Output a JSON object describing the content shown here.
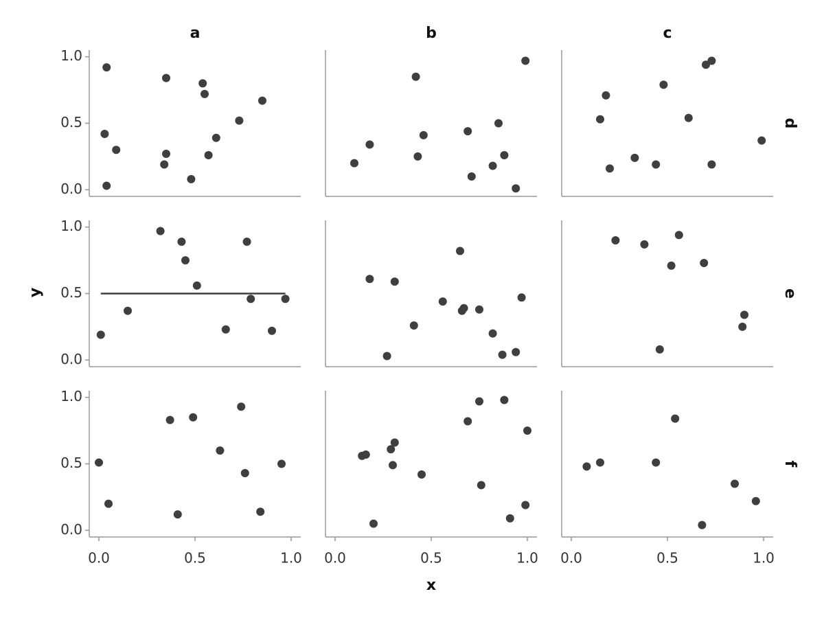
{
  "chart_data": {
    "type": "scatter",
    "x_label": "x",
    "y_label": "y",
    "col_labels": [
      "a",
      "b",
      "c"
    ],
    "row_labels": [
      "d",
      "e",
      "f"
    ],
    "color": "#3f3f3f",
    "xlim": [
      -0.05,
      1.05
    ],
    "ylim": [
      -0.05,
      1.05
    ],
    "xticks": [
      {
        "value": 0,
        "label": "0.0"
      },
      0.5,
      {
        "value": 1,
        "label": "1.0"
      }
    ],
    "yticks": [
      {
        "value": 0,
        "label": "0.0"
      },
      0.5,
      {
        "value": 1,
        "label": "1.0"
      }
    ],
    "panels": [
      [
        {
          "x": [
            0.04,
            0.03,
            0.04,
            0.09,
            0.35,
            0.35,
            0.34,
            0.48,
            0.54,
            0.55,
            0.57,
            0.61,
            0.73,
            0.85
          ],
          "y": [
            0.92,
            0.42,
            0.03,
            0.3,
            0.84,
            0.27,
            0.19,
            0.08,
            0.8,
            0.72,
            0.26,
            0.39,
            0.52,
            0.67
          ]
        },
        {
          "x": [
            0.1,
            0.18,
            0.42,
            0.46,
            0.43,
            0.69,
            0.71,
            0.85,
            0.82,
            0.88,
            0.94,
            0.99
          ],
          "y": [
            0.2,
            0.34,
            0.85,
            0.41,
            0.25,
            0.44,
            0.1,
            0.5,
            0.18,
            0.26,
            0.01,
            0.97
          ]
        },
        {
          "x": [
            0.15,
            0.18,
            0.2,
            0.33,
            0.44,
            0.48,
            0.61,
            0.7,
            0.73,
            0.73,
            0.99
          ],
          "y": [
            0.53,
            0.71,
            0.16,
            0.24,
            0.19,
            0.79,
            0.54,
            0.94,
            0.97,
            0.19,
            0.37
          ]
        }
      ],
      [
        {
          "x": [
            0.01,
            0.15,
            0.32,
            0.43,
            0.45,
            0.51,
            0.66,
            0.77,
            0.79,
            0.9,
            0.97
          ],
          "y": [
            0.19,
            0.37,
            0.97,
            0.89,
            0.75,
            0.56,
            0.23,
            0.89,
            0.46,
            0.22,
            0.46
          ],
          "hline": 0.5
        },
        {
          "x": [
            0.18,
            0.27,
            0.31,
            0.41,
            0.56,
            0.65,
            0.66,
            0.67,
            0.75,
            0.82,
            0.87,
            0.94,
            0.97
          ],
          "y": [
            0.61,
            0.03,
            0.59,
            0.26,
            0.44,
            0.82,
            0.37,
            0.39,
            0.38,
            0.2,
            0.04,
            0.06,
            0.47
          ]
        },
        {
          "x": [
            0.23,
            0.38,
            0.52,
            0.56,
            0.46,
            0.69,
            0.89,
            0.9
          ],
          "y": [
            0.9,
            0.87,
            0.71,
            0.94,
            0.08,
            0.73,
            0.25,
            0.34
          ]
        }
      ],
      [
        {
          "x": [
            0.0,
            0.05,
            0.37,
            0.49,
            0.41,
            0.63,
            0.74,
            0.76,
            0.84,
            0.95
          ],
          "y": [
            0.51,
            0.2,
            0.83,
            0.85,
            0.12,
            0.6,
            0.93,
            0.43,
            0.14,
            0.5
          ]
        },
        {
          "x": [
            0.14,
            0.16,
            0.29,
            0.31,
            0.3,
            0.2,
            0.45,
            0.69,
            0.75,
            0.76,
            0.88,
            1.0,
            0.91,
            0.99
          ],
          "y": [
            0.56,
            0.57,
            0.61,
            0.66,
            0.49,
            0.05,
            0.42,
            0.82,
            0.97,
            0.34,
            0.98,
            0.75,
            0.09,
            0.19
          ]
        },
        {
          "x": [
            0.08,
            0.15,
            0.44,
            0.54,
            0.68,
            0.85,
            0.96
          ],
          "y": [
            0.48,
            0.51,
            0.51,
            0.84,
            0.04,
            0.35,
            0.22
          ]
        }
      ]
    ]
  }
}
